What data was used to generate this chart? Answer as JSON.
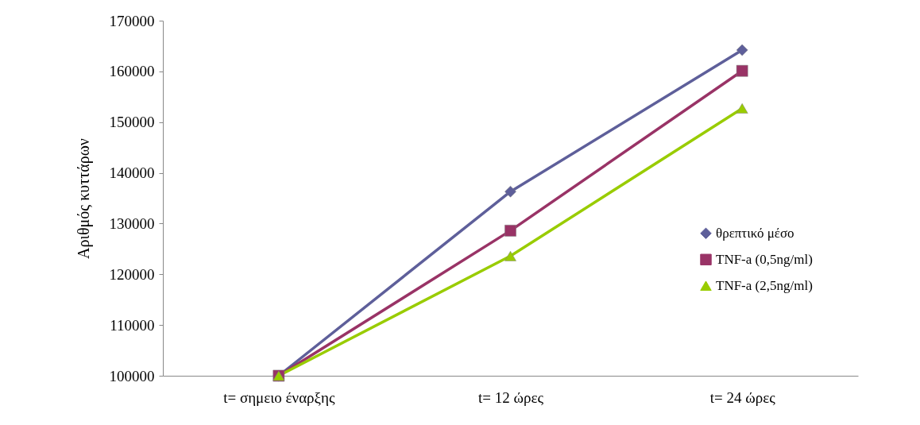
{
  "chart_data": {
    "type": "line",
    "ylabel": "Αριθμός κυττάρων",
    "categories": [
      "t= σημειο έναρξης",
      "t= 12 ώρες",
      "t= 24 ώρες"
    ],
    "series": [
      {
        "name": "θρεπτικό μέσο",
        "color": "#5e5f9a",
        "marker": "diamond",
        "values": [
          100000,
          136300,
          164200
        ]
      },
      {
        "name": "TNF-a (0,5ng/ml)",
        "color": "#993366",
        "marker": "square",
        "values": [
          100000,
          128600,
          160100
        ]
      },
      {
        "name": "TNF-a (2,5ng/ml)",
        "color": "#99cc00",
        "marker": "triangle",
        "values": [
          100000,
          123600,
          152700
        ]
      }
    ],
    "ylim": [
      100000,
      170000
    ],
    "yticks": [
      100000,
      110000,
      120000,
      130000,
      140000,
      150000,
      160000,
      170000
    ],
    "grid": false,
    "legend": "right"
  }
}
